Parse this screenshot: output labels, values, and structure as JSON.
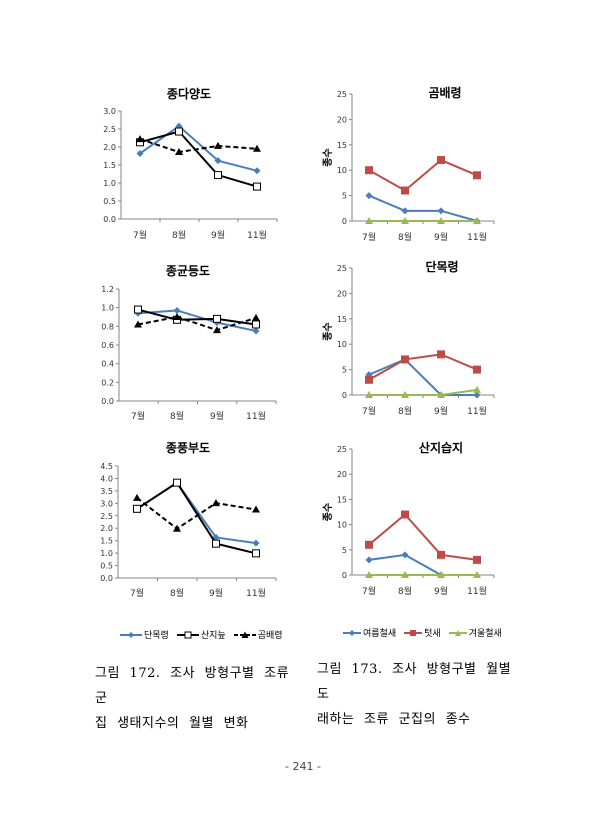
{
  "months": [
    "7월",
    "8월",
    "9월",
    "11월"
  ],
  "chart_data": [
    {
      "id": "diversity",
      "type": "line",
      "title": "종다양도",
      "ylabel": "",
      "xlabel": "",
      "ylim": [
        0,
        3.0
      ],
      "yticks": [
        0.0,
        0.5,
        1.0,
        1.5,
        2.0,
        2.5,
        3.0
      ],
      "ytick_decimals": 1,
      "categories": [
        "7월",
        "8월",
        "9월",
        "11월"
      ],
      "series": [
        {
          "name": "단목령",
          "style": "blue-diamond",
          "values": [
            1.82,
            2.58,
            1.62,
            1.34
          ]
        },
        {
          "name": "산지늪",
          "style": "black-square",
          "values": [
            2.13,
            2.43,
            1.22,
            0.9
          ]
        },
        {
          "name": "곰배령",
          "style": "dashed-triangle",
          "values": [
            2.22,
            1.86,
            2.03,
            1.95
          ]
        }
      ]
    },
    {
      "id": "evenness",
      "type": "line",
      "title": "종균등도",
      "ylabel": "",
      "xlabel": "",
      "ylim": [
        0,
        1.2
      ],
      "yticks": [
        0.0,
        0.2,
        0.4,
        0.6,
        0.8,
        1.0,
        1.2
      ],
      "ytick_decimals": 1,
      "categories": [
        "7월",
        "8월",
        "9월",
        "11월"
      ],
      "series": [
        {
          "name": "단목령",
          "style": "blue-diamond",
          "values": [
            0.94,
            0.97,
            0.84,
            0.75
          ]
        },
        {
          "name": "산지늪",
          "style": "black-square",
          "values": [
            0.98,
            0.87,
            0.88,
            0.82
          ]
        },
        {
          "name": "곰배령",
          "style": "dashed-triangle",
          "values": [
            0.82,
            0.9,
            0.76,
            0.89
          ]
        }
      ]
    },
    {
      "id": "richness",
      "type": "line",
      "title": "종풍부도",
      "ylabel": "",
      "xlabel": "",
      "ylim": [
        0,
        4.5
      ],
      "yticks": [
        0.0,
        0.5,
        1.0,
        1.5,
        2.0,
        2.5,
        3.0,
        3.5,
        4.0,
        4.5
      ],
      "ytick_decimals": 1,
      "categories": [
        "7월",
        "8월",
        "9월",
        "11월"
      ],
      "series": [
        {
          "name": "단목령",
          "style": "blue-diamond",
          "values": [
            2.78,
            3.83,
            1.63,
            1.4
          ]
        },
        {
          "name": "산지늪",
          "style": "black-square",
          "values": [
            2.78,
            3.83,
            1.38,
            0.99
          ]
        },
        {
          "name": "곰배령",
          "style": "dashed-triangle",
          "values": [
            3.22,
            1.98,
            3.01,
            2.75
          ]
        }
      ]
    },
    {
      "id": "gombaeryeong",
      "type": "line",
      "title": "곰배령",
      "ylabel": "종수",
      "xlabel": "",
      "ylim": [
        0,
        25
      ],
      "yticks": [
        0,
        5,
        10,
        15,
        20,
        25
      ],
      "ytick_decimals": 0,
      "categories": [
        "7월",
        "8월",
        "9월",
        "11월"
      ],
      "series": [
        {
          "name": "여름철새",
          "style": "blue-diamond-solid",
          "values": [
            5,
            2,
            2,
            0
          ]
        },
        {
          "name": "텃새",
          "style": "red-square",
          "values": [
            10,
            6,
            12,
            9
          ]
        },
        {
          "name": "겨울철새",
          "style": "green-triangle",
          "values": [
            0,
            0,
            0,
            0
          ]
        }
      ]
    },
    {
      "id": "danmokryeong",
      "type": "line",
      "title": "단목령",
      "ylabel": "종수",
      "xlabel": "",
      "ylim": [
        0,
        25
      ],
      "yticks": [
        0,
        5,
        10,
        15,
        20,
        25
      ],
      "ytick_decimals": 0,
      "categories": [
        "7월",
        "8월",
        "9월",
        "11월"
      ],
      "series": [
        {
          "name": "여름철새",
          "style": "blue-diamond-solid",
          "values": [
            4,
            7,
            0,
            0
          ]
        },
        {
          "name": "텃새",
          "style": "red-square",
          "values": [
            3,
            7,
            8,
            5
          ]
        },
        {
          "name": "겨울철새",
          "style": "green-triangle",
          "values": [
            0,
            0,
            0,
            1
          ]
        }
      ]
    },
    {
      "id": "sanjiseupji",
      "type": "line",
      "title": "산지습지",
      "ylabel": "종수",
      "xlabel": "",
      "ylim": [
        0,
        25
      ],
      "yticks": [
        0,
        5,
        10,
        15,
        20,
        25
      ],
      "ytick_decimals": 0,
      "categories": [
        "7월",
        "8월",
        "9월",
        "11월"
      ],
      "series": [
        {
          "name": "여름철새",
          "style": "blue-diamond-solid",
          "values": [
            3,
            4,
            0,
            null
          ]
        },
        {
          "name": "텃새",
          "style": "red-square",
          "values": [
            6,
            12,
            4,
            3
          ]
        },
        {
          "name": "겨울철새",
          "style": "green-triangle",
          "values": [
            0,
            0,
            0,
            0
          ]
        }
      ]
    }
  ],
  "legends": {
    "left": [
      "단목령",
      "산지늪",
      "곰배령"
    ],
    "right": [
      "여름철새",
      "텃새",
      "겨울철새"
    ]
  },
  "colors": {
    "blue": "#4a7ebb",
    "black": "#000000",
    "red": "#be4b48",
    "green": "#98b954",
    "axis": "#868686"
  },
  "captions": {
    "left_line1": "그림 172. 조사 방형구별 조류 군",
    "left_line2": "집 생태지수의 월별 변화",
    "right_line1": "그림 173. 조사 방형구별 월별 도",
    "right_line2": "래하는 조류 군집의 종수"
  },
  "page_number": "- 241 -"
}
